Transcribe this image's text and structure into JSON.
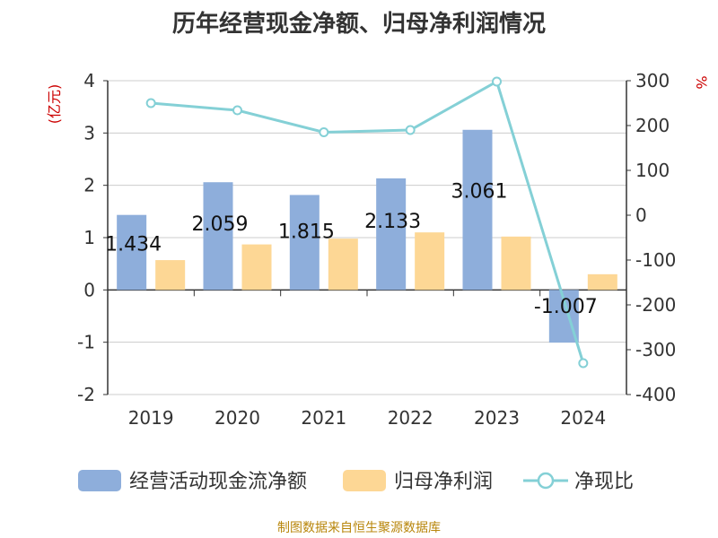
{
  "chart_data": {
    "type": "bar",
    "title": "历年经营现金净额、归母净利润情况",
    "categories": [
      "2019",
      "2020",
      "2021",
      "2022",
      "2023",
      "2024"
    ],
    "ylabel_left": "(亿元)",
    "ylabel_right": "%",
    "ylim_left": [
      -2,
      4
    ],
    "yticks_left": [
      -2,
      -1,
      0,
      1,
      2,
      3,
      4
    ],
    "ylim_right": [
      -400,
      300
    ],
    "yticks_right": [
      -400,
      -300,
      -200,
      -100,
      0,
      100,
      200,
      300
    ],
    "series": [
      {
        "name": "经营活动现金流净额",
        "type": "bar",
        "axis": "left",
        "color": "#8eaedb",
        "values": [
          1.434,
          2.059,
          1.815,
          2.133,
          3.061,
          -1.007
        ],
        "labels": [
          "1.434",
          "2.059",
          "1.815",
          "2.133",
          "3.061",
          "-1.007"
        ]
      },
      {
        "name": "归母净利润",
        "type": "bar",
        "axis": "left",
        "color": "#fdd795",
        "values": [
          0.57,
          0.87,
          0.98,
          1.1,
          1.02,
          0.3
        ]
      },
      {
        "name": "净现比",
        "type": "line",
        "axis": "right",
        "color": "#84d0d6",
        "values": [
          250,
          234,
          185,
          190,
          298,
          -330
        ]
      }
    ],
    "legend_position": "bottom",
    "grid": true
  },
  "source_note": "制图数据来自恒生聚源数据库"
}
